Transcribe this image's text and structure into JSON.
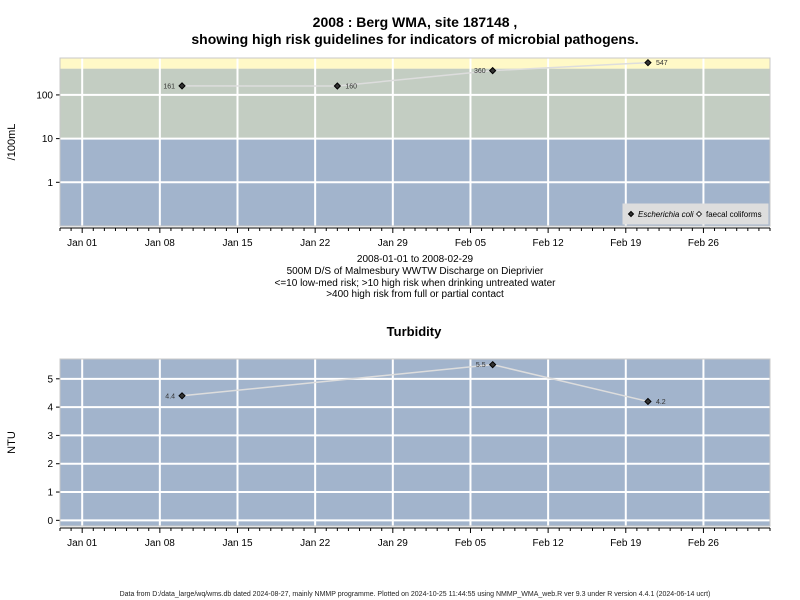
{
  "title_line1": "2008 : Berg WMA, site 187148 ,",
  "title_line2": "showing high risk guidelines for indicators of microbial pathogens.",
  "subtitle_lines": [
    "2008-01-01 to 2008-02-29",
    "500M D/S of Malmesbury WWTW Discharge on Dieprivier",
    "<=10 low-med risk; >10 high risk when drinking untreated water",
    ">400 high risk from full or partial contact"
  ],
  "footer": "Data from D:/data_large/wq/wms.db dated 2024-08-27, mainly NMMP programme. Plotted on 2024-10-25 11:44:55 using NMMP_WMA_web.R ver 9.3 under R version 4.4.1 (2024-06-14 ucrt)",
  "colors": {
    "low_risk": "#a2b4cc",
    "high_risk_drinking": "#c3cdc2",
    "high_risk_contact": "#fff9c7",
    "grid": "#ffffff",
    "line": "#dddddd",
    "point": "#333333"
  },
  "chart_data": [
    {
      "type": "line",
      "scale": "log",
      "ylabel": "/100mL",
      "x_ticks": [
        "Jan 01",
        "Jan 08",
        "Jan 15",
        "Jan 22",
        "Jan 29",
        "Feb 05",
        "Feb 12",
        "Feb 19",
        "Feb 26"
      ],
      "y_ticks": [
        "1",
        "10",
        "100"
      ],
      "y_tick_values": [
        1,
        10,
        100
      ],
      "ylim": [
        0.1,
        700
      ],
      "xlim": [
        "2007-12-30",
        "2008-03-03"
      ],
      "bands": [
        {
          "from": 0.1,
          "to": 10,
          "color": "#a2b4cc"
        },
        {
          "from": 10,
          "to": 400,
          "color": "#c3cdc2"
        },
        {
          "from": 400,
          "to": 700,
          "color": "#fff9c7"
        }
      ],
      "series": [
        {
          "name": "Escherichia coli",
          "marker": "filled-diamond",
          "points": [
            {
              "x": "2008-01-10",
              "y": 161,
              "label": "161"
            },
            {
              "x": "2008-01-24",
              "y": 160,
              "label": "160"
            },
            {
              "x": "2008-02-07",
              "y": 360,
              "label": "360"
            },
            {
              "x": "2008-02-21",
              "y": 547,
              "label": "547"
            }
          ]
        },
        {
          "name": "faecal coliforms",
          "marker": "open-diamond",
          "points": []
        }
      ],
      "legend_position": "bottom-right"
    },
    {
      "type": "line",
      "scale": "linear",
      "title": "Turbidity",
      "ylabel": "NTU",
      "x_ticks": [
        "Jan 01",
        "Jan 08",
        "Jan 15",
        "Jan 22",
        "Jan 29",
        "Feb 05",
        "Feb 12",
        "Feb 19",
        "Feb 26"
      ],
      "y_ticks": [
        "0",
        "1",
        "2",
        "3",
        "4",
        "5"
      ],
      "y_tick_values": [
        0,
        1,
        2,
        3,
        4,
        5
      ],
      "ylim": [
        -0.2,
        5.7
      ],
      "xlim": [
        "2007-12-30",
        "2008-03-03"
      ],
      "series": [
        {
          "name": "Turbidity",
          "marker": "filled-diamond",
          "points": [
            {
              "x": "2008-01-10",
              "y": 4.4,
              "label": "4.4"
            },
            {
              "x": "2008-02-07",
              "y": 5.5,
              "label": "5.5"
            },
            {
              "x": "2008-02-21",
              "y": 4.2,
              "label": "4.2"
            }
          ]
        }
      ]
    }
  ]
}
